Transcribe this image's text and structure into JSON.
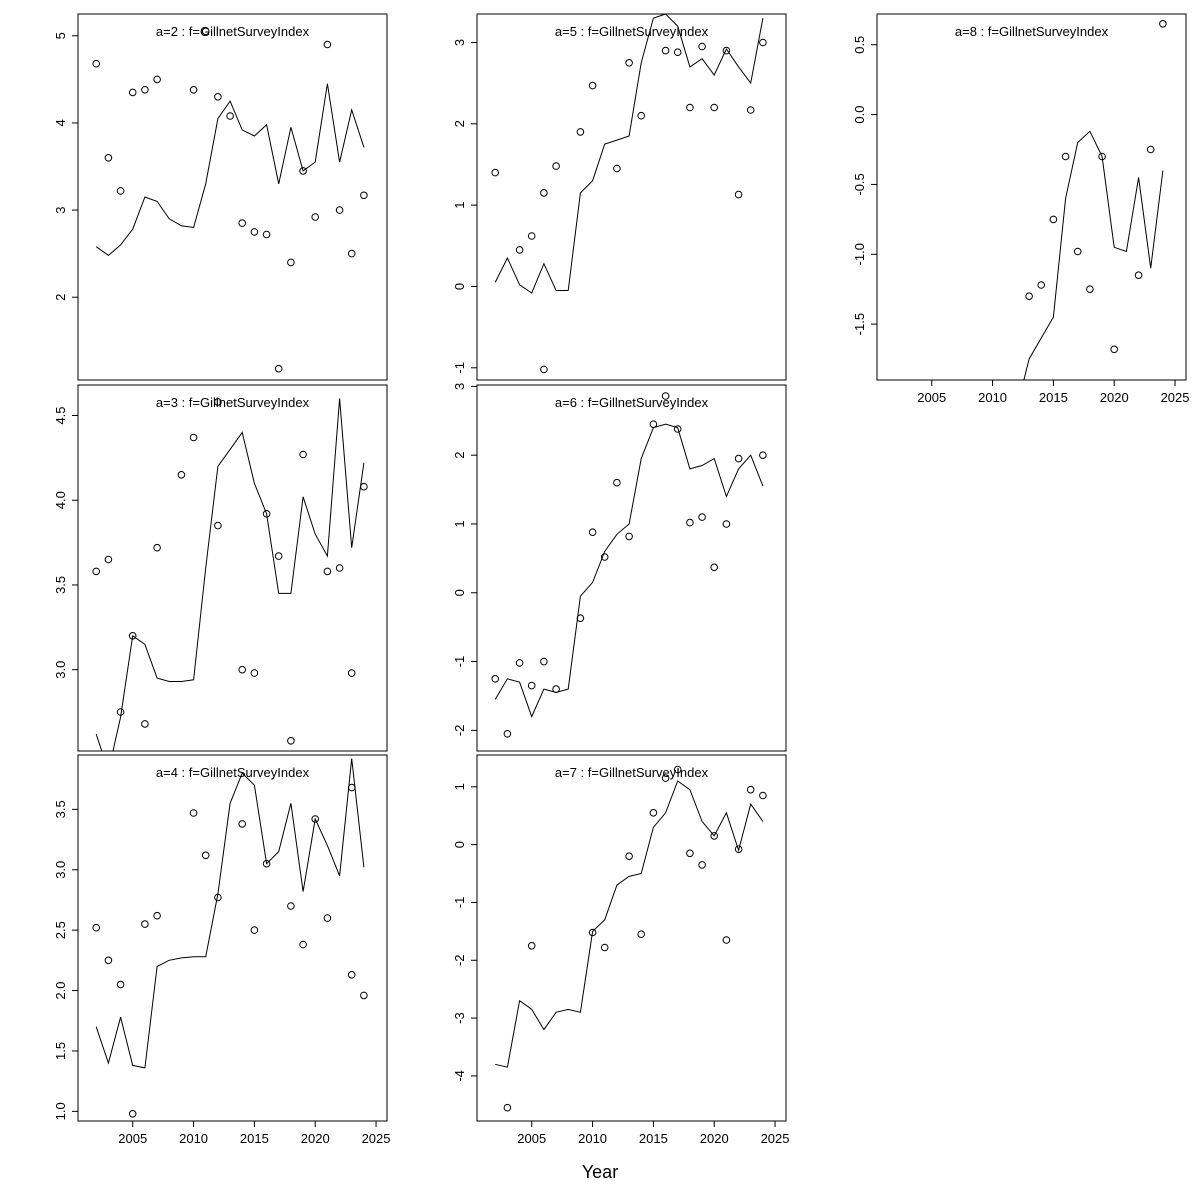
{
  "chart_data": {
    "type": "line",
    "description": "Trellis of observed survey points (open circles) and fitted lines per age group",
    "xlabel": "Year",
    "xlim": [
      2000.5,
      2025.9
    ],
    "xticks": [
      2005,
      2010,
      2015,
      2020,
      2025
    ],
    "xtick_labels": [
      "2005",
      "2010",
      "2015",
      "2020",
      "2025"
    ],
    "grid": false,
    "legend": "none",
    "marker": "open-circle",
    "line_color": "#000000",
    "point_color": "#000000",
    "title_color": "#7a7a7a",
    "panels": [
      {
        "id": "a2",
        "title": "a=2  :  f=GillnetSurveyIndex",
        "grid_pos": [
          0,
          0
        ],
        "show_x_labels": false,
        "ylim": [
          1.05,
          5.25
        ],
        "yticks": [
          2,
          3,
          4,
          5
        ],
        "ytick_labels": [
          "2",
          "3",
          "4",
          "5"
        ],
        "points": {
          "x": [
            2002,
            2003,
            2004,
            2005,
            2006,
            2007,
            2010,
            2011,
            2012,
            2013,
            2014,
            2015,
            2016,
            2017,
            2018,
            2019,
            2020,
            2021,
            2022,
            2023,
            2024
          ],
          "y": [
            4.68,
            3.6,
            3.22,
            4.35,
            4.38,
            4.5,
            4.38,
            5.05,
            4.3,
            4.08,
            2.85,
            2.75,
            2.72,
            1.18,
            2.4,
            3.45,
            2.92,
            4.9,
            3.0,
            2.5,
            3.17
          ]
        },
        "line": {
          "x_start": 2002,
          "y": [
            2.58,
            2.48,
            2.6,
            2.78,
            3.15,
            3.1,
            2.9,
            2.82,
            2.8,
            3.3,
            4.05,
            4.25,
            3.92,
            3.85,
            3.98,
            3.3,
            3.95,
            3.45,
            3.55,
            4.45,
            3.55,
            4.15,
            3.72
          ]
        }
      },
      {
        "id": "a3",
        "title": "a=3  :  f=GillnetSurveyIndex",
        "grid_pos": [
          1,
          0
        ],
        "show_x_labels": false,
        "ylim": [
          2.52,
          4.68
        ],
        "yticks": [
          3.0,
          3.5,
          4.0,
          4.5
        ],
        "ytick_labels": [
          "3.0",
          "3.5",
          "4.0",
          "4.5"
        ],
        "points": {
          "x": [
            2002,
            2003,
            2004,
            2005,
            2006,
            2007,
            2009,
            2010,
            2012,
            2012,
            2014,
            2015,
            2016,
            2017,
            2018,
            2019,
            2021,
            2022,
            2023,
            2024
          ],
          "y": [
            3.58,
            3.65,
            2.75,
            3.2,
            2.68,
            3.72,
            4.15,
            4.37,
            4.58,
            3.85,
            3.0,
            2.98,
            3.92,
            3.67,
            2.58,
            4.27,
            3.58,
            3.6,
            2.98,
            4.08
          ]
        },
        "line": {
          "x_start": 2002,
          "y": [
            2.62,
            2.4,
            2.72,
            3.2,
            3.15,
            2.95,
            2.93,
            2.93,
            2.94,
            3.6,
            4.2,
            4.3,
            4.4,
            4.1,
            3.92,
            3.45,
            3.45,
            4.02,
            3.8,
            3.67,
            4.6,
            3.72,
            4.22
          ]
        }
      },
      {
        "id": "a4",
        "title": "a=4  :  f=GillnetSurveyIndex",
        "grid_pos": [
          2,
          0
        ],
        "show_x_labels": true,
        "ylim": [
          0.92,
          3.95
        ],
        "yticks": [
          1.0,
          1.5,
          2.0,
          2.5,
          3.0,
          3.5
        ],
        "ytick_labels": [
          "1.0",
          "1.5",
          "2.0",
          "2.5",
          "3.0",
          "3.5"
        ],
        "points": {
          "x": [
            2002,
            2003,
            2004,
            2005,
            2006,
            2007,
            2010,
            2011,
            2012,
            2014,
            2015,
            2016,
            2018,
            2019,
            2020,
            2021,
            2023,
            2023,
            2024
          ],
          "y": [
            2.52,
            2.25,
            2.05,
            0.98,
            2.55,
            2.62,
            3.47,
            3.12,
            2.77,
            3.38,
            2.5,
            3.05,
            2.7,
            2.38,
            3.42,
            2.6,
            3.68,
            2.13,
            1.96
          ]
        },
        "line": {
          "x_start": 2002,
          "y": [
            1.7,
            1.4,
            1.78,
            1.38,
            1.36,
            2.2,
            2.25,
            2.27,
            2.28,
            2.28,
            2.8,
            3.55,
            3.8,
            3.7,
            3.05,
            3.15,
            3.55,
            2.82,
            3.42,
            3.2,
            2.95,
            3.92,
            3.02
          ]
        }
      },
      {
        "id": "a5",
        "title": "a=5  :  f=GillnetSurveyIndex",
        "grid_pos": [
          0,
          1
        ],
        "show_x_labels": false,
        "ylim": [
          -1.15,
          3.35
        ],
        "yticks": [
          -1,
          0,
          1,
          2,
          3
        ],
        "ytick_labels": [
          "-1",
          "0",
          "1",
          "2",
          "3"
        ],
        "points": {
          "x": [
            2002,
            2004,
            2005,
            2006,
            2006,
            2007,
            2009,
            2010,
            2012,
            2013,
            2014,
            2016,
            2017,
            2018,
            2019,
            2020,
            2021,
            2022,
            2023,
            2024
          ],
          "y": [
            1.4,
            0.45,
            0.62,
            1.15,
            -1.02,
            1.48,
            1.9,
            2.47,
            1.45,
            2.75,
            2.1,
            2.9,
            2.88,
            2.2,
            2.95,
            2.2,
            2.9,
            1.13,
            2.17,
            3.0
          ]
        },
        "line": {
          "x_start": 2002,
          "y": [
            0.05,
            0.35,
            0.02,
            -0.08,
            0.28,
            -0.05,
            -0.05,
            1.15,
            1.3,
            1.75,
            1.8,
            1.85,
            2.75,
            3.3,
            3.35,
            3.2,
            2.7,
            2.8,
            2.6,
            2.92,
            2.7,
            2.5,
            3.3
          ]
        }
      },
      {
        "id": "a6",
        "title": "a=6  :  f=GillnetSurveyIndex",
        "grid_pos": [
          1,
          1
        ],
        "show_x_labels": false,
        "ylim": [
          -2.3,
          3.02
        ],
        "yticks": [
          -2,
          -1,
          0,
          1,
          2,
          3
        ],
        "ytick_labels": [
          "-2",
          "-1",
          "0",
          "1",
          "2",
          "3"
        ],
        "points": {
          "x": [
            2002,
            2003,
            2004,
            2005,
            2006,
            2007,
            2009,
            2010,
            2011,
            2012,
            2013,
            2015,
            2016,
            2017,
            2018,
            2019,
            2020,
            2021,
            2022,
            2024
          ],
          "y": [
            -1.25,
            -2.05,
            -1.02,
            -1.35,
            -1.0,
            -1.4,
            -0.37,
            0.88,
            0.52,
            1.6,
            0.82,
            2.45,
            2.86,
            2.38,
            1.02,
            1.1,
            0.37,
            1.0,
            1.95,
            2.0
          ]
        },
        "line": {
          "x_start": 2002,
          "y": [
            -1.55,
            -1.25,
            -1.3,
            -1.8,
            -1.4,
            -1.45,
            -1.4,
            -0.05,
            0.15,
            0.6,
            0.85,
            1.0,
            1.95,
            2.4,
            2.45,
            2.4,
            1.8,
            1.85,
            1.95,
            1.4,
            1.8,
            2.0,
            1.55
          ]
        }
      },
      {
        "id": "a7",
        "title": "a=7  :  f=GillnetSurveyIndex",
        "grid_pos": [
          2,
          1
        ],
        "show_x_labels": true,
        "ylim": [
          -4.78,
          1.55
        ],
        "yticks": [
          -4,
          -3,
          -2,
          -1,
          0,
          1
        ],
        "ytick_labels": [
          "-4",
          "-3",
          "-2",
          "-1",
          "0",
          "1"
        ],
        "points": {
          "x": [
            2003,
            2005,
            2010,
            2011,
            2013,
            2014,
            2015,
            2016,
            2017,
            2018,
            2019,
            2020,
            2021,
            2022,
            2023,
            2024
          ],
          "y": [
            -4.55,
            -1.75,
            -1.52,
            -1.78,
            -0.2,
            -1.55,
            0.55,
            1.15,
            1.3,
            -0.15,
            -0.35,
            0.15,
            -1.65,
            -0.08,
            0.95,
            0.85
          ]
        },
        "line": {
          "x_start": 2002,
          "y": [
            -3.8,
            -3.85,
            -2.7,
            -2.85,
            -3.2,
            -2.9,
            -2.85,
            -2.9,
            -1.5,
            -1.3,
            -0.7,
            -0.55,
            -0.5,
            0.3,
            0.55,
            1.1,
            0.95,
            0.4,
            0.15,
            0.55,
            -0.1,
            0.7,
            0.4
          ]
        }
      },
      {
        "id": "a8",
        "title": "a=8  :  f=GillnetSurveyIndex",
        "grid_pos": [
          0,
          2
        ],
        "show_x_labels": true,
        "ylim": [
          -1.9,
          0.72
        ],
        "yticks": [
          -1.5,
          -1.0,
          -0.5,
          0.0,
          0.5
        ],
        "ytick_labels": [
          "-1.5",
          "-1.0",
          "-0.5",
          "0.0",
          "0.5"
        ],
        "points": {
          "x": [
            2013,
            2014,
            2015,
            2016,
            2017,
            2018,
            2019,
            2020,
            2022,
            2023,
            2024
          ],
          "y": [
            -1.3,
            -1.22,
            -0.75,
            -0.3,
            -0.98,
            -1.25,
            -0.3,
            -1.68,
            -1.15,
            -0.25,
            0.65
          ]
        },
        "line": {
          "x_start": 2012,
          "y": [
            -2.1,
            -1.75,
            -1.6,
            -1.45,
            -0.6,
            -0.2,
            -0.12,
            -0.3,
            -0.95,
            -0.98,
            -0.45,
            -1.1,
            -0.4
          ]
        }
      }
    ]
  }
}
